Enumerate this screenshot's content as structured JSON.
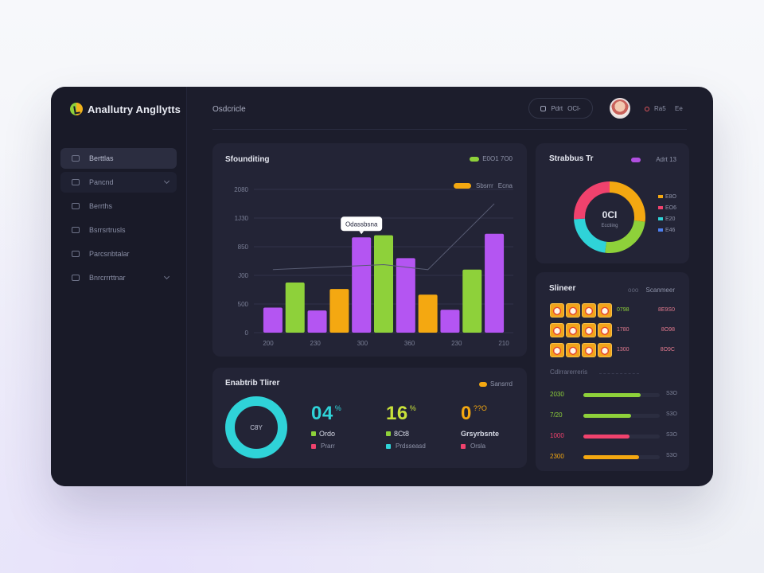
{
  "app": {
    "brand": "Anallutry Angllytts"
  },
  "header": {
    "title": "Osdcricle",
    "pill_label": "Pdrt",
    "pill_value": "OCl-",
    "right_a": "Ra5",
    "right_b": "Ee"
  },
  "sidebar": {
    "items": [
      {
        "label": "Berttlas"
      },
      {
        "label": "Pancnd"
      },
      {
        "label": "Berrths"
      },
      {
        "label": "Bsrrsrtrusls"
      },
      {
        "label": "Parcsnbtalar"
      },
      {
        "label": "Bnrcrrrttnar"
      }
    ]
  },
  "main_chart": {
    "title": "Sfounditing",
    "legend_top": "E0O1 7O0",
    "legend_second_a": "Sbsrrr",
    "legend_second_b": "Ecna",
    "tooltip": "Odassbsna"
  },
  "chart_data": {
    "type": "bar",
    "categories": [
      "",
      "",
      "",
      "",
      "",
      "",
      "",
      "",
      "",
      "",
      ""
    ],
    "x_tick_labels": [
      "200",
      "230",
      "300",
      "360",
      "230",
      "210"
    ],
    "y_tick_labels": [
      "0",
      "500",
      "J00",
      "850",
      "1J30",
      "2080"
    ],
    "values": [
      35,
      70,
      31,
      61,
      133,
      136,
      104,
      53,
      32,
      88,
      138
    ],
    "colors": [
      "#b455f2",
      "#8ed13a",
      "#b455f2",
      "#f4a811",
      "#b455f2",
      "#8ed13a",
      "#b455f2",
      "#f4a811",
      "#b455f2",
      "#8ed13a",
      "#b455f2"
    ],
    "trend": [
      [
        0,
        88
      ],
      [
        5,
        95
      ],
      [
        7,
        88
      ],
      [
        10,
        180
      ]
    ],
    "ylim": [
      0,
      200
    ],
    "grid": true
  },
  "donut": {
    "title": "Strabbus Tr",
    "head_right": "Adrt 13",
    "center_big": "0CI",
    "center_small": "Ecctiing",
    "segments": [
      {
        "label": "E8O",
        "value": 27,
        "color": "#f4a811"
      },
      {
        "label": "EO6",
        "value": 25,
        "color": "#8ed13a"
      },
      {
        "label": "E20",
        "value": 22,
        "color": "#2fd3d8"
      },
      {
        "label": "E46",
        "value": 26,
        "color": "#f0426d"
      }
    ],
    "legend_colors": [
      "#f4a811",
      "#f0426d",
      "#2fd3d8",
      "#4d7ff0"
    ]
  },
  "streamer": {
    "title": "Slineer",
    "head_mid": "ooo",
    "head_right": "Scanmeer",
    "rows": [
      {
        "value": "0798",
        "value_color": "#8ed13a",
        "right": "8E9S0"
      },
      {
        "value": "1780",
        "value_color": "#e27a8e",
        "right": "8O98"
      },
      {
        "value": "1300",
        "value_color": "#e27a8e",
        "right": "8O9C"
      }
    ],
    "sub_label": "Cdlrrarerreris",
    "progress": [
      {
        "label": "2030",
        "color": "#8ed13a",
        "fill": 0.75,
        "end": "S3O"
      },
      {
        "label": "7/20",
        "color": "#8ed13a",
        "fill": 0.63,
        "end": "S3O"
      },
      {
        "label": "1000",
        "color": "#f0426d",
        "fill": 0.6,
        "end": "S3O"
      },
      {
        "label": "2300",
        "color": "#f4a811",
        "fill": 0.73,
        "end": "S3O"
      }
    ]
  },
  "stats": {
    "title": "Enabtrib Tlirer",
    "legend": "Sansrrd",
    "ring_label": "C8Y",
    "items": [
      {
        "big": "04",
        "sup": "%",
        "big_color": "#2fd3d8",
        "sub1": "Ordo",
        "sub1_sq": "#8ed13a",
        "sub2": "Prarr",
        "sub2_sq": "#f0426d"
      },
      {
        "big": "16",
        "sup": "%",
        "big_color": "#c9e23a",
        "sub1": "8Ct8",
        "sub1_sq": "#8ed13a",
        "sub2": "Prdsseasd",
        "sub2_sq": "#2fd3d8"
      },
      {
        "big": "0",
        "sup": "??O",
        "big_color": "#f4a811",
        "sub1": "Grsyrbsnte",
        "sub1_sq": "",
        "sub2": "Orsla",
        "sub2_sq": "#f0426d"
      }
    ]
  }
}
